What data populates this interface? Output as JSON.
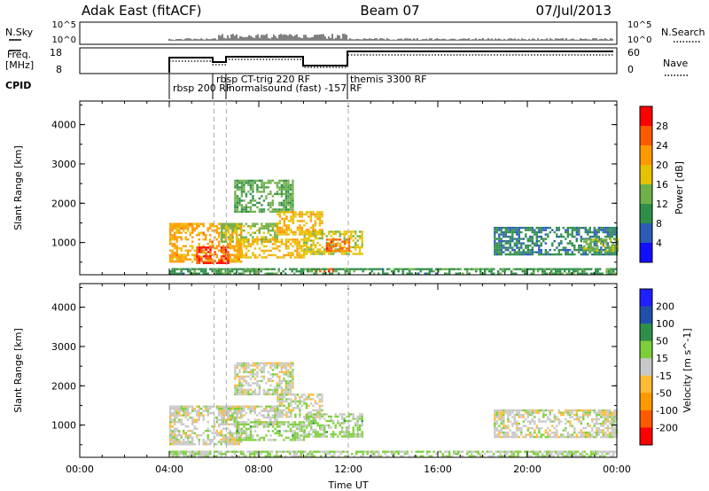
{
  "header": {
    "radar": "Adak East (fitACF)",
    "beam": "Beam 07",
    "date": "07/Jul/2013"
  },
  "panels": {
    "nsky_label": "N.Sky",
    "nsky_ticks": [
      "10^5",
      "10^0"
    ],
    "nsearch_label": "N.Search",
    "nsearch_ticks": [
      "10^5",
      "10^0"
    ],
    "freq_label_1": "Freq.",
    "freq_label_2": "[MHz]",
    "freq_ticks": [
      "18",
      "8"
    ],
    "nave_label": "Nave",
    "nave_ticks": [
      "60",
      "0"
    ],
    "cpid_label": "CPID",
    "cpid_programs": [
      "rbsp 200 RF",
      "rbsp CT-trig 220 RF",
      "normalsound (fast) -157 RF",
      "themis 3300 RF"
    ]
  },
  "chart_data": [
    {
      "type": "heatmap",
      "name": "power",
      "ylabel": "Slant Range [km]",
      "xlabel": "",
      "x_range_hours": [
        0,
        24
      ],
      "ylim": [
        180,
        4600
      ],
      "y_ticks": [
        "4000",
        "3000",
        "2000",
        "1000"
      ],
      "colorbar_label": "Power [dB]",
      "colorbar_ticks": [
        "28",
        "24",
        "20",
        "16",
        "12",
        "8",
        "4"
      ],
      "colorbar_range": [
        0,
        30
      ],
      "colors": [
        "#1010ff",
        "#2d5cb8",
        "#2f8f4a",
        "#6fb04a",
        "#e6c200",
        "#ff9900",
        "#ff5a00",
        "#ff0000"
      ],
      "regions": [
        {
          "t": [
            4.0,
            7.2
          ],
          "r": [
            500,
            1500
          ],
          "v": 20
        },
        {
          "t": [
            5.2,
            6.6
          ],
          "r": [
            500,
            900
          ],
          "v": 26
        },
        {
          "t": [
            6.3,
            8.8
          ],
          "r": [
            1000,
            1500
          ],
          "v": 14
        },
        {
          "t": [
            7.0,
            10.0
          ],
          "r": [
            600,
            1100
          ],
          "v": 18
        },
        {
          "t": [
            6.9,
            9.5
          ],
          "r": [
            1800,
            2600
          ],
          "v": 12
        },
        {
          "t": [
            8.8,
            10.8
          ],
          "r": [
            1200,
            1800
          ],
          "v": 18
        },
        {
          "t": [
            10.0,
            12.6
          ],
          "r": [
            700,
            1300
          ],
          "v": 16
        },
        {
          "t": [
            11.0,
            12.0
          ],
          "r": [
            800,
            1100
          ],
          "v": 24
        },
        {
          "t": [
            10.2,
            11.3
          ],
          "r": [
            250,
            350
          ],
          "v": 26
        },
        {
          "t": [
            18.5,
            24.0
          ],
          "r": [
            700,
            1400
          ],
          "v": 8
        },
        {
          "t": [
            22.5,
            24.0
          ],
          "r": [
            800,
            1100
          ],
          "v": 14
        },
        {
          "t": [
            4.0,
            24.0
          ],
          "r": [
            200,
            350
          ],
          "v": 10
        }
      ]
    },
    {
      "type": "heatmap",
      "name": "velocity",
      "ylabel": "Slant Range [km]",
      "xlabel": "Time UT",
      "x_range_hours": [
        0,
        24
      ],
      "x_ticks": [
        "00:00",
        "04:00",
        "08:00",
        "12:00",
        "16:00",
        "20:00",
        "00:00"
      ],
      "ylim": [
        180,
        4600
      ],
      "y_ticks": [
        "4000",
        "3000",
        "2000",
        "1000"
      ],
      "colorbar_label": "Velocity [m s^-1]",
      "colorbar_ticks": [
        "200",
        "100",
        "50",
        "15",
        "-15",
        "-50",
        "-100",
        "-200"
      ],
      "colorbar_range": [
        -250,
        250
      ],
      "colors": [
        "#ff0000",
        "#ff5a00",
        "#ff9900",
        "#ffbb33",
        "#c8c8c8",
        "#7ccf3a",
        "#2f8f4a",
        "#1f4faa",
        "#2020ff"
      ],
      "regions": [
        {
          "t": [
            4.0,
            7.2
          ],
          "r": [
            500,
            1500
          ],
          "v": 0
        },
        {
          "t": [
            6.3,
            8.8
          ],
          "r": [
            1000,
            1500
          ],
          "v": 0
        },
        {
          "t": [
            7.0,
            10.0
          ],
          "r": [
            600,
            1100
          ],
          "v": 40
        },
        {
          "t": [
            6.9,
            9.5
          ],
          "r": [
            1800,
            2600
          ],
          "v": 0
        },
        {
          "t": [
            8.8,
            10.8
          ],
          "r": [
            1200,
            1800
          ],
          "v": 0
        },
        {
          "t": [
            10.0,
            12.6
          ],
          "r": [
            700,
            1300
          ],
          "v": 40
        },
        {
          "t": [
            18.5,
            24.0
          ],
          "r": [
            700,
            1400
          ],
          "v": 0
        },
        {
          "t": [
            4.0,
            24.0
          ],
          "r": [
            200,
            350
          ],
          "v": 30
        }
      ]
    }
  ]
}
